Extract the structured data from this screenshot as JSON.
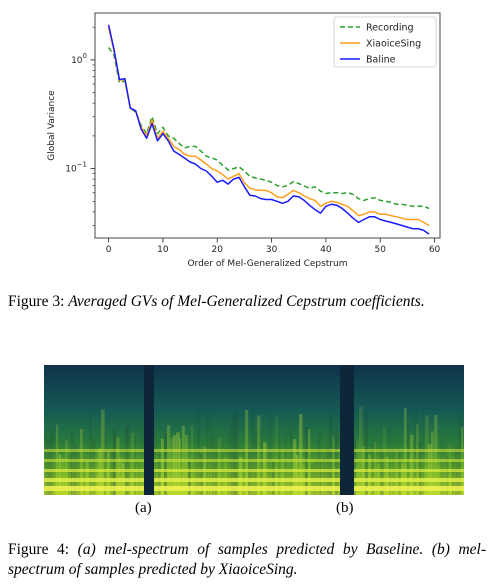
{
  "chart_data": {
    "type": "line",
    "title": "",
    "xlabel": "Order of Mel-Generalized Cepstrum",
    "ylabel": "Global Variance",
    "xlim": [
      -2.5,
      61
    ],
    "ylim": [
      0.023,
      2.7
    ],
    "yscale": "log",
    "xticks": [
      0,
      10,
      20,
      30,
      40,
      50,
      60
    ],
    "yticks": [
      {
        "value": 1.0,
        "base": "10",
        "exp": "0"
      },
      {
        "value": 0.1,
        "base": "10",
        "exp": "−1"
      }
    ],
    "legend_position": "top-right",
    "series": [
      {
        "name": "Recording",
        "color": "#2ca02c",
        "dash": "dashed",
        "x": [
          0,
          1,
          2,
          3,
          4,
          5,
          6,
          7,
          8,
          9,
          10,
          11,
          12,
          13,
          14,
          15,
          16,
          17,
          18,
          19,
          20,
          21,
          22,
          23,
          24,
          25,
          26,
          27,
          28,
          29,
          30,
          31,
          32,
          33,
          34,
          35,
          36,
          37,
          38,
          39,
          40,
          41,
          42,
          43,
          44,
          45,
          46,
          47,
          48,
          49,
          50,
          51,
          52,
          53,
          54,
          55,
          56,
          57,
          58,
          59
        ],
        "values": [
          1.3,
          1.1,
          0.62,
          0.64,
          0.36,
          0.33,
          0.25,
          0.21,
          0.3,
          0.21,
          0.24,
          0.2,
          0.19,
          0.17,
          0.155,
          0.16,
          0.16,
          0.145,
          0.13,
          0.125,
          0.12,
          0.107,
          0.097,
          0.1,
          0.104,
          0.095,
          0.085,
          0.082,
          0.08,
          0.078,
          0.075,
          0.07,
          0.068,
          0.07,
          0.076,
          0.073,
          0.069,
          0.066,
          0.068,
          0.062,
          0.059,
          0.06,
          0.06,
          0.059,
          0.06,
          0.058,
          0.053,
          0.051,
          0.053,
          0.054,
          0.051,
          0.05,
          0.049,
          0.047,
          0.047,
          0.046,
          0.045,
          0.045,
          0.045,
          0.043
        ]
      },
      {
        "name": "XiaoiceSing",
        "color": "#ff9f1c",
        "dash": "solid",
        "x": [
          0,
          1,
          2,
          3,
          4,
          5,
          6,
          7,
          8,
          9,
          10,
          11,
          12,
          13,
          14,
          15,
          16,
          17,
          18,
          19,
          20,
          21,
          22,
          23,
          24,
          25,
          26,
          27,
          28,
          29,
          30,
          31,
          32,
          33,
          34,
          35,
          36,
          37,
          38,
          39,
          40,
          41,
          42,
          43,
          44,
          45,
          46,
          47,
          48,
          49,
          50,
          51,
          52,
          53,
          54,
          55,
          56,
          57,
          58,
          59
        ],
        "values": [
          2.0,
          1.2,
          0.65,
          0.66,
          0.36,
          0.34,
          0.24,
          0.2,
          0.28,
          0.19,
          0.22,
          0.19,
          0.16,
          0.15,
          0.135,
          0.13,
          0.13,
          0.12,
          0.11,
          0.1,
          0.095,
          0.088,
          0.08,
          0.085,
          0.09,
          0.074,
          0.066,
          0.064,
          0.063,
          0.063,
          0.06,
          0.055,
          0.054,
          0.058,
          0.063,
          0.06,
          0.056,
          0.053,
          0.051,
          0.045,
          0.048,
          0.05,
          0.049,
          0.047,
          0.045,
          0.041,
          0.037,
          0.038,
          0.04,
          0.04,
          0.038,
          0.038,
          0.037,
          0.036,
          0.035,
          0.034,
          0.034,
          0.034,
          0.032,
          0.03
        ]
      },
      {
        "name": "Baline",
        "color": "#1a1aff",
        "dash": "solid",
        "x": [
          0,
          1,
          2,
          3,
          4,
          5,
          6,
          7,
          8,
          9,
          10,
          11,
          12,
          13,
          14,
          15,
          16,
          17,
          18,
          19,
          20,
          21,
          22,
          23,
          24,
          25,
          26,
          27,
          28,
          29,
          30,
          31,
          32,
          33,
          34,
          35,
          36,
          37,
          38,
          39,
          40,
          41,
          42,
          43,
          44,
          45,
          46,
          47,
          48,
          49,
          50,
          51,
          52,
          53,
          54,
          55,
          56,
          57,
          58,
          59
        ],
        "values": [
          2.1,
          1.25,
          0.66,
          0.67,
          0.36,
          0.34,
          0.23,
          0.19,
          0.26,
          0.18,
          0.21,
          0.18,
          0.145,
          0.135,
          0.125,
          0.115,
          0.11,
          0.1,
          0.095,
          0.085,
          0.075,
          0.078,
          0.072,
          0.08,
          0.083,
          0.068,
          0.057,
          0.056,
          0.053,
          0.052,
          0.052,
          0.05,
          0.048,
          0.05,
          0.056,
          0.055,
          0.051,
          0.046,
          0.042,
          0.039,
          0.045,
          0.047,
          0.046,
          0.043,
          0.039,
          0.035,
          0.032,
          0.034,
          0.036,
          0.036,
          0.034,
          0.033,
          0.032,
          0.031,
          0.03,
          0.029,
          0.028,
          0.028,
          0.027,
          0.025
        ]
      }
    ]
  },
  "figure3": {
    "label": "Figure 3:",
    "caption": "Averaged GVs of Mel-Generalized Cepstrum coefficients."
  },
  "figure4": {
    "label": "Figure 4:",
    "caption": "(a) mel-spectrum of samples predicted by Baseline. (b) mel-spectrum of samples predicted by XiaoiceSing.",
    "sub_labels": [
      "(a)",
      "(b)"
    ]
  }
}
